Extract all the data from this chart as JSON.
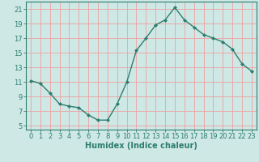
{
  "x": [
    0,
    1,
    2,
    3,
    4,
    5,
    6,
    7,
    8,
    9,
    10,
    11,
    12,
    13,
    14,
    15,
    16,
    17,
    18,
    19,
    20,
    21,
    22,
    23
  ],
  "y": [
    11.2,
    10.8,
    9.5,
    8.0,
    7.7,
    7.5,
    6.5,
    5.8,
    5.8,
    8.0,
    11.0,
    15.3,
    17.0,
    18.8,
    19.5,
    21.2,
    19.5,
    18.5,
    17.5,
    17.0,
    16.5,
    15.5,
    13.5,
    12.5
  ],
  "line_color": "#2e7d6e",
  "marker": "D",
  "marker_size": 2,
  "bg_color": "#cde8e5",
  "grid_color": "#f0a0a0",
  "xlabel": "Humidex (Indice chaleur)",
  "xlim": [
    -0.5,
    23.5
  ],
  "ylim": [
    4.5,
    22
  ],
  "yticks": [
    5,
    7,
    9,
    11,
    13,
    15,
    17,
    19,
    21
  ],
  "xticks": [
    0,
    1,
    2,
    3,
    4,
    5,
    6,
    7,
    8,
    9,
    10,
    11,
    12,
    13,
    14,
    15,
    16,
    17,
    18,
    19,
    20,
    21,
    22,
    23
  ],
  "tick_color": "#2e7d6e",
  "axis_color": "#2e7d6e",
  "xlabel_fontsize": 7,
  "tick_fontsize": 6,
  "linewidth": 1.0
}
